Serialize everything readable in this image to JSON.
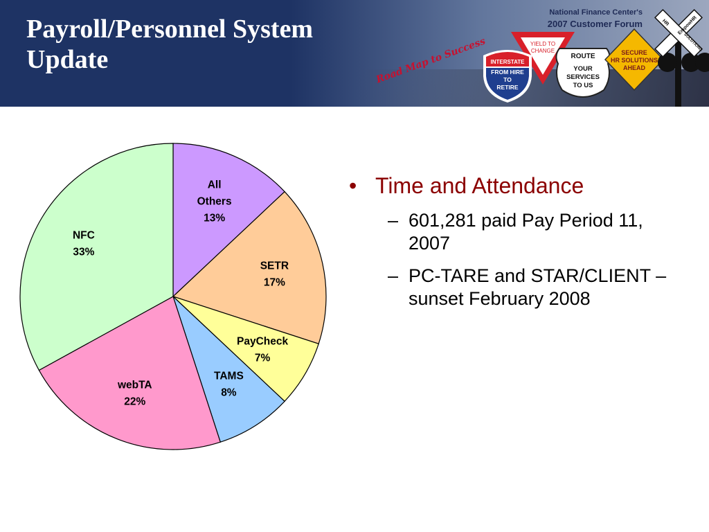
{
  "header": {
    "title_line1": "Payroll/Personnel System",
    "title_line2": "Update",
    "forum_line1": "National Finance Center's",
    "forum_line2": "2007 Customer Forum",
    "tagline": "Road Map to Success",
    "signs": {
      "interstate": [
        "INTERSTATE",
        "FROM HIRE",
        "TO",
        "RETIRE"
      ],
      "yield": [
        "YIELD TO",
        "CHANGE"
      ],
      "route": [
        "ROUTE",
        "YOUR",
        "SERVICES",
        "TO US"
      ],
      "secure": [
        "SECURE",
        "HR SOLUTIONS",
        "AHEAD"
      ],
      "crossbuck": [
        "HR",
        "EmpowHR",
        "SOLUTIONS"
      ]
    }
  },
  "chart_data": {
    "type": "pie",
    "title": "",
    "slices": [
      {
        "label": "All Others",
        "label_lines": [
          "All",
          "Others"
        ],
        "value": 13,
        "value_label": "13%",
        "color": "#cc99ff"
      },
      {
        "label": "SETR",
        "label_lines": [
          "SETR"
        ],
        "value": 17,
        "value_label": "17%",
        "color": "#ffcc99"
      },
      {
        "label": "PayCheck",
        "label_lines": [
          "PayCheck"
        ],
        "value": 7,
        "value_label": "7%",
        "color": "#ffff99"
      },
      {
        "label": "TAMS",
        "label_lines": [
          "TAMS"
        ],
        "value": 8,
        "value_label": "8%",
        "color": "#99ccff"
      },
      {
        "label": "webTA",
        "label_lines": [
          "webTA"
        ],
        "value": 22,
        "value_label": "22%",
        "color": "#ff99cc"
      },
      {
        "label": "NFC",
        "label_lines": [
          "NFC"
        ],
        "value": 33,
        "value_label": "33%",
        "color": "#ccffcc"
      }
    ]
  },
  "bullets": {
    "heading": "Time and Attendance",
    "items": [
      "601,281 paid Pay Period 11, 2007",
      "PC-TARE and STAR/CLIENT – sunset February 2008"
    ]
  }
}
